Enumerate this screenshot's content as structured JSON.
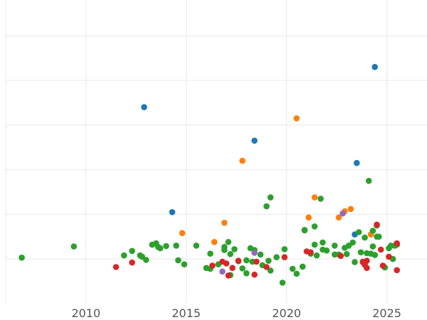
{
  "chart_data": {
    "type": "scatter",
    "title": "",
    "xlabel": "",
    "ylabel": "",
    "xlim": [
      2006.0,
      2027.0
    ],
    "ylim": [
      -1.0,
      5.8
    ],
    "grid": true,
    "legend": "none",
    "x_ticks": [
      2010,
      2015,
      2020,
      2025
    ],
    "y_gridlines": [
      0,
      1,
      2,
      3,
      4,
      5
    ],
    "series": [
      {
        "color": "#1f77b4",
        "points": [
          [
            2012.9,
            3.4
          ],
          [
            2014.3,
            1.05
          ],
          [
            2018.4,
            2.65
          ],
          [
            2023.5,
            2.15
          ],
          [
            2023.4,
            0.55
          ],
          [
            2024.4,
            4.3
          ]
        ]
      },
      {
        "color": "#ff7f0e",
        "points": [
          [
            2014.8,
            0.58
          ],
          [
            2016.4,
            0.38
          ],
          [
            2016.9,
            0.81
          ],
          [
            2017.8,
            2.2
          ],
          [
            2020.5,
            3.15
          ],
          [
            2021.1,
            0.93
          ],
          [
            2021.4,
            1.38
          ],
          [
            2022.6,
            0.93
          ],
          [
            2022.9,
            1.07
          ],
          [
            2023.2,
            1.12
          ],
          [
            2024.2,
            0.55
          ]
        ]
      },
      {
        "color": "#2ca02c",
        "points": [
          [
            2006.8,
            0.03
          ],
          [
            2009.4,
            0.28
          ],
          [
            2011.9,
            0.08
          ],
          [
            2012.3,
            0.18
          ],
          [
            2012.7,
            0.08
          ],
          [
            2012.8,
            0.05
          ],
          [
            2013.0,
            -0.02
          ],
          [
            2013.3,
            0.32
          ],
          [
            2013.5,
            0.35
          ],
          [
            2013.6,
            0.27
          ],
          [
            2013.7,
            0.24
          ],
          [
            2014.0,
            0.29
          ],
          [
            2014.5,
            0.3
          ],
          [
            2014.6,
            -0.03
          ],
          [
            2014.9,
            -0.12
          ],
          [
            2015.5,
            0.3
          ],
          [
            2016.0,
            -0.2
          ],
          [
            2016.2,
            0.12
          ],
          [
            2016.2,
            -0.22
          ],
          [
            2016.6,
            -0.12
          ],
          [
            2016.9,
            0.2
          ],
          [
            2016.9,
            0.27
          ],
          [
            2017.1,
            0.38
          ],
          [
            2017.2,
            0.11
          ],
          [
            2017.2,
            -0.36
          ],
          [
            2017.4,
            0.22
          ],
          [
            2017.6,
            -0.05
          ],
          [
            2017.8,
            -0.21
          ],
          [
            2018.0,
            -0.32
          ],
          [
            2018.0,
            -0.03
          ],
          [
            2018.2,
            0.24
          ],
          [
            2018.3,
            -0.06
          ],
          [
            2018.4,
            0.2
          ],
          [
            2018.7,
            0.1
          ],
          [
            2018.8,
            -0.14
          ],
          [
            2019.0,
            1.18
          ],
          [
            2019.1,
            -0.04
          ],
          [
            2019.2,
            -0.26
          ],
          [
            2019.2,
            1.38
          ],
          [
            2019.5,
            0.04
          ],
          [
            2019.8,
            -0.53
          ],
          [
            2019.9,
            0.22
          ],
          [
            2020.3,
            -0.22
          ],
          [
            2020.5,
            -0.33
          ],
          [
            2020.8,
            -0.17
          ],
          [
            2020.9,
            0.64
          ],
          [
            2020.9,
            0.65
          ],
          [
            2021.2,
            0.12
          ],
          [
            2021.4,
            0.32
          ],
          [
            2021.4,
            0.73
          ],
          [
            2021.5,
            0.08
          ],
          [
            2021.7,
            1.35
          ],
          [
            2021.8,
            0.21
          ],
          [
            2021.8,
            0.37
          ],
          [
            2022.0,
            0.19
          ],
          [
            2022.4,
            0.3
          ],
          [
            2022.4,
            0.1
          ],
          [
            2022.6,
            0.1
          ],
          [
            2022.9,
            0.25
          ],
          [
            2023.0,
            0.11
          ],
          [
            2023.1,
            0.3
          ],
          [
            2023.3,
            0.37
          ],
          [
            2023.4,
            -0.07
          ],
          [
            2023.6,
            0.6
          ],
          [
            2023.7,
            0.15
          ],
          [
            2023.8,
            -0.06
          ],
          [
            2023.9,
            0.48
          ],
          [
            2024.0,
            0.13
          ],
          [
            2024.1,
            1.75
          ],
          [
            2024.2,
            0.12
          ],
          [
            2024.3,
            0.28
          ],
          [
            2024.3,
            0.63
          ],
          [
            2024.4,
            0.09
          ],
          [
            2024.5,
            0.5
          ],
          [
            2024.5,
            0.75
          ],
          [
            2024.6,
            0.5
          ],
          [
            2024.9,
            -0.19
          ],
          [
            2025.1,
            0.24
          ],
          [
            2025.2,
            0.3
          ],
          [
            2025.3,
            0.0
          ],
          [
            2025.4,
            0.3
          ],
          [
            2025.5,
            0.32
          ]
        ]
      },
      {
        "color": "#d62728",
        "points": [
          [
            2011.5,
            -0.18
          ],
          [
            2012.3,
            -0.08
          ],
          [
            2016.3,
            -0.15
          ],
          [
            2016.8,
            -0.06
          ],
          [
            2017.0,
            -0.1
          ],
          [
            2017.1,
            -0.37
          ],
          [
            2017.3,
            -0.2
          ],
          [
            2017.6,
            -0.04
          ],
          [
            2018.4,
            -0.35
          ],
          [
            2018.5,
            -0.06
          ],
          [
            2019.0,
            -0.18
          ],
          [
            2019.9,
            0.04
          ],
          [
            2021.0,
            0.17
          ],
          [
            2021.2,
            0.15
          ],
          [
            2022.7,
            0.07
          ],
          [
            2023.8,
            -0.07
          ],
          [
            2023.9,
            -0.13
          ],
          [
            2024.0,
            -0.04
          ],
          [
            2024.0,
            -0.2
          ],
          [
            2024.5,
            0.77
          ],
          [
            2024.7,
            0.21
          ],
          [
            2024.8,
            -0.15
          ],
          [
            2025.1,
            0.05
          ],
          [
            2025.5,
            -0.25
          ],
          [
            2025.5,
            0.35
          ]
        ]
      },
      {
        "color": "#9467bd",
        "points": [
          [
            2016.8,
            -0.28
          ],
          [
            2018.4,
            0.14
          ],
          [
            2022.8,
            1.02
          ]
        ]
      }
    ]
  }
}
